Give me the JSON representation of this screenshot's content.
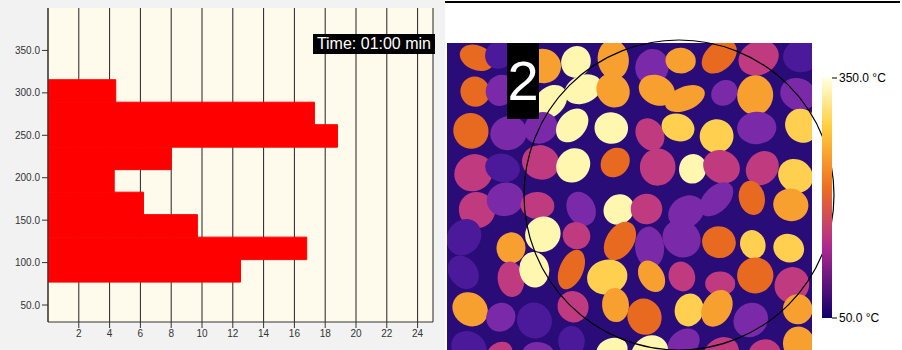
{
  "chart_data": {
    "type": "histogram",
    "orientation": "horizontal",
    "title": "Time: 01:00 min",
    "bins": [
      77,
      103.5,
      130,
      156.5,
      183,
      209.5,
      236,
      262.5,
      289,
      315.5
    ],
    "values": [
      12.5,
      16.8,
      9.7,
      6.2,
      4.3,
      8.0,
      18.8,
      17.3,
      4.4
    ],
    "color": "#ff0000",
    "xlim": [
      0,
      25
    ],
    "xticks": [
      2,
      4,
      6,
      8,
      10,
      12,
      14,
      16,
      18,
      20,
      22,
      24
    ],
    "ylim": [
      30,
      400
    ],
    "yticks": [
      {
        "value": 50,
        "label": "50.0"
      },
      {
        "value": 100,
        "label": "100.0"
      },
      {
        "value": 150,
        "label": "150.0"
      },
      {
        "value": 200,
        "label": "200.0"
      },
      {
        "value": 250,
        "label": "250.0"
      },
      {
        "value": 300,
        "label": "300.0"
      },
      {
        "value": 350,
        "label": "350.0"
      }
    ],
    "grid": true
  },
  "thermal_image": {
    "panel_label": "2",
    "colorbar": {
      "range": [
        50,
        350
      ],
      "ticks": [
        {
          "value": 350,
          "label": "350.0 °C"
        },
        {
          "value": 50,
          "label": "50.0 °C"
        }
      ]
    }
  }
}
